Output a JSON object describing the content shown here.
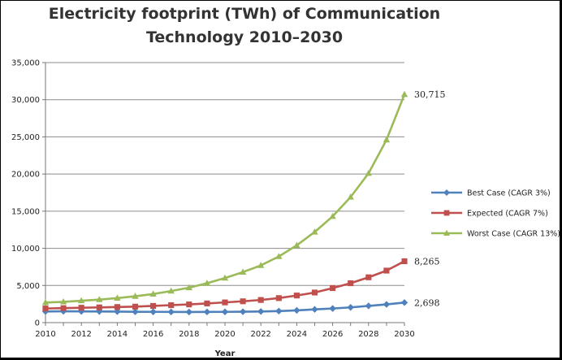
{
  "chart_data": {
    "type": "line",
    "title_line1": "Electricity footprint  (TWh) of Communication",
    "title_line2": "Technology 2010–2030",
    "xlabel": "Year",
    "ylabel": "",
    "x": [
      2010,
      2011,
      2012,
      2013,
      2014,
      2015,
      2016,
      2017,
      2018,
      2019,
      2020,
      2021,
      2022,
      2023,
      2024,
      2025,
      2026,
      2027,
      2028,
      2029,
      2030
    ],
    "x_ticks": [
      "2010",
      "2012",
      "2014",
      "2016",
      "2018",
      "2020",
      "2022",
      "2024",
      "2026",
      "2028",
      "2030"
    ],
    "y_ticks": [
      "0",
      "5,000",
      "10,000",
      "15,000",
      "20,000",
      "25,000",
      "30,000",
      "35,000"
    ],
    "ylim": [
      0,
      35000
    ],
    "grid": "horizontal",
    "legend_position": "right",
    "series": [
      {
        "name": "Best Case (CAGR  3%)",
        "color": "#4f81bd",
        "marker": "diamond",
        "values": [
          1500,
          1520,
          1510,
          1500,
          1480,
          1460,
          1450,
          1440,
          1430,
          1440,
          1450,
          1470,
          1500,
          1550,
          1650,
          1780,
          1900,
          2050,
          2250,
          2450,
          2698
        ],
        "end_label": "2,698"
      },
      {
        "name": "Expected (CAGR  7%)",
        "color": "#c0504d",
        "marker": "square",
        "values": [
          1900,
          1950,
          2000,
          2050,
          2100,
          2150,
          2250,
          2350,
          2450,
          2580,
          2720,
          2870,
          3050,
          3300,
          3650,
          4050,
          4650,
          5300,
          6100,
          7000,
          8265
        ],
        "end_label": "8,265"
      },
      {
        "name": "Worst Case (CAGR 13%)",
        "color": "#9bbb59",
        "marker": "triangle",
        "values": [
          2700,
          2800,
          2950,
          3100,
          3300,
          3550,
          3850,
          4250,
          4700,
          5300,
          6000,
          6800,
          7700,
          8900,
          10400,
          12200,
          14300,
          16900,
          20100,
          24600,
          30715
        ],
        "end_label": "30,715"
      }
    ]
  }
}
